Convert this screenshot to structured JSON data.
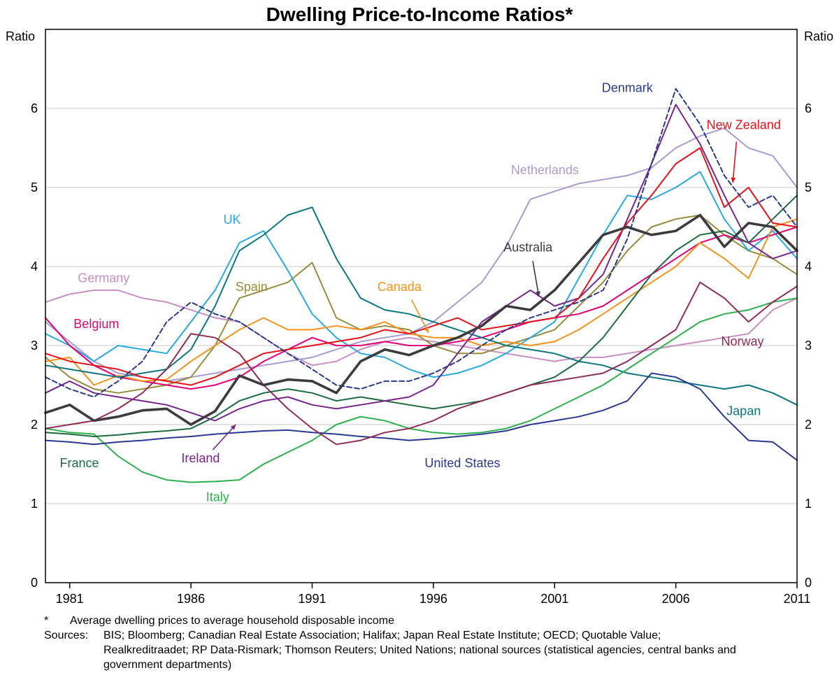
{
  "header": {
    "title": "Dwelling Price-to-Income Ratios*"
  },
  "footnote": {
    "marker": "*",
    "text": "Average dwelling prices to average household disposable income",
    "sources_label": "Sources:",
    "sources_text": "BIS; Bloomberg; Canadian Real Estate Association; Halifax; Japan Real Estate Institute; OECD; Quotable Value; Realkreditraadet; RP Data-Rismark; Thomson Reuters; United Nations; national sources (statistical agencies, central banks and government departments)"
  },
  "chart_data": {
    "type": "line",
    "title": "Dwelling Price-to-Income Ratios*",
    "ylabel": "Ratio",
    "ylabel_right": "Ratio",
    "xlim": [
      1980,
      2011
    ],
    "ylim": [
      0,
      7
    ],
    "yticks": [
      0,
      1,
      2,
      3,
      4,
      5,
      6
    ],
    "xticks": [
      1981,
      1986,
      1991,
      1996,
      2001,
      2006,
      2011
    ],
    "grid_on": true,
    "grid_color": "#c8c8c8",
    "x": [
      1980,
      1981,
      1982,
      1983,
      1984,
      1985,
      1986,
      1987,
      1988,
      1989,
      1990,
      1991,
      1992,
      1993,
      1994,
      1995,
      1996,
      1997,
      1998,
      1999,
      2000,
      2001,
      2002,
      2003,
      2004,
      2005,
      2006,
      2007,
      2008,
      2009,
      2010,
      2011
    ],
    "series": [
      {
        "id": "germany",
        "name": "Germany",
        "color": "#c98ec2",
        "width": 2,
        "values": [
          3.55,
          3.65,
          3.7,
          3.7,
          3.6,
          3.55,
          3.45,
          3.35,
          3.3,
          3.1,
          2.9,
          2.75,
          2.8,
          2.95,
          3.05,
          3.1,
          3.05,
          3.0,
          2.95,
          2.9,
          2.85,
          2.8,
          2.85,
          2.85,
          2.9,
          2.95,
          3.0,
          3.05,
          3.1,
          3.15,
          3.45,
          3.6
        ]
      },
      {
        "id": "netherlands",
        "name": "Netherlands",
        "color": "#a89cce",
        "width": 2,
        "values": [
          3.3,
          3.05,
          2.8,
          2.65,
          2.6,
          2.55,
          2.6,
          2.65,
          2.7,
          2.75,
          2.8,
          2.85,
          2.95,
          3.05,
          3.1,
          3.15,
          3.3,
          3.55,
          3.8,
          4.25,
          4.85,
          4.95,
          5.05,
          5.1,
          5.15,
          5.25,
          5.5,
          5.65,
          5.75,
          5.5,
          5.4,
          5.0
        ]
      },
      {
        "id": "spain",
        "name": "Spain",
        "color": "#968c3e",
        "width": 2,
        "values": [
          2.85,
          2.6,
          2.45,
          2.4,
          2.45,
          2.5,
          2.6,
          3.0,
          3.6,
          3.7,
          3.8,
          4.05,
          3.35,
          3.2,
          3.25,
          3.2,
          3.0,
          2.9,
          2.9,
          3.0,
          3.1,
          3.2,
          3.5,
          3.8,
          4.2,
          4.5,
          4.6,
          4.65,
          4.4,
          4.2,
          4.1,
          3.9
        ]
      },
      {
        "id": "uk",
        "name": "UK",
        "color": "#27aae1",
        "width": 2,
        "values": [
          3.15,
          3.0,
          2.8,
          3.0,
          2.95,
          2.9,
          3.3,
          3.7,
          4.3,
          4.45,
          3.95,
          3.4,
          3.1,
          2.9,
          2.85,
          2.7,
          2.6,
          2.65,
          2.75,
          2.9,
          3.1,
          3.3,
          3.85,
          4.4,
          4.9,
          4.85,
          5.0,
          5.2,
          4.6,
          4.2,
          4.45,
          4.1
        ]
      },
      {
        "id": "belgium",
        "name": "Belgium",
        "color": "#e20177",
        "width": 2,
        "values": [
          3.35,
          3.0,
          2.75,
          2.6,
          2.55,
          2.5,
          2.45,
          2.5,
          2.6,
          2.8,
          2.95,
          3.1,
          3.0,
          3.0,
          3.05,
          3.0,
          3.0,
          3.05,
          3.1,
          3.2,
          3.3,
          3.35,
          3.4,
          3.5,
          3.7,
          3.9,
          4.1,
          4.3,
          4.4,
          4.3,
          4.4,
          4.5
        ]
      },
      {
        "id": "canada",
        "name": "Canada",
        "color": "#f5921e",
        "width": 2,
        "values": [
          2.8,
          2.85,
          2.5,
          2.62,
          2.55,
          2.57,
          2.8,
          3.0,
          3.2,
          3.35,
          3.2,
          3.2,
          3.25,
          3.2,
          3.3,
          3.15,
          3.1,
          3.1,
          3.0,
          3.05,
          3.0,
          3.05,
          3.2,
          3.4,
          3.6,
          3.8,
          4.0,
          4.3,
          4.1,
          3.85,
          4.5,
          4.6
        ]
      },
      {
        "id": "japan",
        "name": "Japan",
        "color": "#0d7680",
        "width": 2,
        "values": [
          2.75,
          2.7,
          2.65,
          2.6,
          2.65,
          2.7,
          2.95,
          3.5,
          4.2,
          4.4,
          4.65,
          4.75,
          4.1,
          3.6,
          3.45,
          3.4,
          3.3,
          3.2,
          3.1,
          3.0,
          2.95,
          2.9,
          2.8,
          2.75,
          2.65,
          2.6,
          2.55,
          2.5,
          2.45,
          2.5,
          2.4,
          2.25
        ]
      },
      {
        "id": "italy",
        "name": "Italy",
        "color": "#2eb04c",
        "width": 2,
        "values": [
          1.95,
          1.9,
          1.88,
          1.6,
          1.4,
          1.3,
          1.27,
          1.28,
          1.3,
          1.5,
          1.65,
          1.8,
          2.0,
          2.1,
          2.05,
          1.95,
          1.9,
          1.88,
          1.9,
          1.95,
          2.05,
          2.2,
          2.35,
          2.5,
          2.7,
          2.9,
          3.1,
          3.3,
          3.4,
          3.45,
          3.55,
          3.6
        ]
      },
      {
        "id": "france",
        "name": "France",
        "color": "#1d6b40",
        "width": 2,
        "values": [
          1.9,
          1.88,
          1.85,
          1.87,
          1.9,
          1.92,
          1.95,
          2.1,
          2.3,
          2.4,
          2.45,
          2.4,
          2.3,
          2.35,
          2.3,
          2.25,
          2.2,
          2.25,
          2.3,
          2.4,
          2.5,
          2.6,
          2.8,
          3.1,
          3.5,
          3.9,
          4.2,
          4.4,
          4.45,
          4.3,
          4.6,
          4.9
        ]
      },
      {
        "id": "united-states",
        "name": "United States",
        "color": "#2b3990",
        "width": 2,
        "values": [
          1.8,
          1.78,
          1.75,
          1.78,
          1.8,
          1.83,
          1.85,
          1.88,
          1.9,
          1.92,
          1.93,
          1.9,
          1.88,
          1.85,
          1.83,
          1.8,
          1.82,
          1.85,
          1.88,
          1.92,
          2.0,
          2.05,
          2.1,
          2.18,
          2.3,
          2.65,
          2.6,
          2.45,
          2.1,
          1.8,
          1.78,
          1.55
        ]
      },
      {
        "id": "norway",
        "name": "Norway",
        "color": "#8f2d56",
        "width": 2,
        "values": [
          1.95,
          2.0,
          2.05,
          2.2,
          2.4,
          2.7,
          3.15,
          3.1,
          2.9,
          2.5,
          2.2,
          1.95,
          1.75,
          1.8,
          1.9,
          1.95,
          2.05,
          2.2,
          2.3,
          2.4,
          2.5,
          2.55,
          2.6,
          2.65,
          2.8,
          3.0,
          3.2,
          3.8,
          3.6,
          3.3,
          3.55,
          3.75
        ]
      },
      {
        "id": "ireland",
        "name": "Ireland",
        "color": "#76268c",
        "width": 2,
        "values": [
          2.4,
          2.55,
          2.4,
          2.35,
          2.3,
          2.25,
          2.15,
          2.05,
          2.2,
          2.3,
          2.35,
          2.25,
          2.2,
          2.25,
          2.3,
          2.35,
          2.5,
          2.9,
          3.3,
          3.5,
          3.7,
          3.5,
          3.6,
          3.9,
          4.6,
          5.3,
          6.05,
          5.55,
          4.9,
          4.3,
          4.1,
          4.2
        ]
      },
      {
        "id": "new-zealand",
        "name": "New Zealand",
        "color": "#e4131b",
        "width": 2,
        "values": [
          2.9,
          2.8,
          2.75,
          2.7,
          2.6,
          2.55,
          2.5,
          2.6,
          2.75,
          2.9,
          2.95,
          3.0,
          3.05,
          3.1,
          3.2,
          3.15,
          3.25,
          3.35,
          3.2,
          3.25,
          3.3,
          3.35,
          3.6,
          4.1,
          4.55,
          4.9,
          5.3,
          5.5,
          4.75,
          5.0,
          4.55,
          4.5
        ]
      },
      {
        "id": "denmark",
        "name": "Denmark",
        "color": "#2b3a8f",
        "width": 2,
        "dash": "7,4",
        "values": [
          2.6,
          2.45,
          2.35,
          2.55,
          2.8,
          3.3,
          3.55,
          3.4,
          3.3,
          3.1,
          2.9,
          2.7,
          2.5,
          2.45,
          2.55,
          2.55,
          2.65,
          2.8,
          3.0,
          3.2,
          3.35,
          3.45,
          3.55,
          3.7,
          4.35,
          5.3,
          6.25,
          5.8,
          5.15,
          4.75,
          4.9,
          4.5
        ]
      },
      {
        "id": "australia",
        "name": "Australia",
        "color": "#3c3c3e",
        "width": 3.6,
        "values": [
          2.15,
          2.25,
          2.05,
          2.1,
          2.18,
          2.2,
          2.0,
          2.17,
          2.62,
          2.5,
          2.57,
          2.55,
          2.4,
          2.8,
          2.95,
          2.88,
          3.0,
          3.1,
          3.25,
          3.5,
          3.45,
          3.7,
          4.05,
          4.4,
          4.5,
          4.4,
          4.45,
          4.65,
          4.25,
          4.55,
          4.5,
          4.2
        ]
      }
    ],
    "annotations": [
      {
        "id": "germany",
        "label": "Germany",
        "x": 1982.4,
        "y": 3.8,
        "color": "#c98ec2"
      },
      {
        "id": "belgium",
        "label": "Belgium",
        "x": 1982.1,
        "y": 3.22,
        "color": "#e20177"
      },
      {
        "id": "uk",
        "label": "UK",
        "x": 1987.7,
        "y": 4.54,
        "color": "#27aae1"
      },
      {
        "id": "spain",
        "label": "Spain",
        "x": 1988.5,
        "y": 3.69,
        "color": "#968c3e"
      },
      {
        "id": "canada",
        "label": "Canada",
        "x": 1994.6,
        "y": 3.69,
        "color": "#f5921e",
        "arrow": [
          1995.1,
          3.58,
          1995.8,
          3.16
        ]
      },
      {
        "id": "netherlands",
        "label": "Netherlands",
        "x": 2000.6,
        "y": 5.17,
        "color": "#a89cce"
      },
      {
        "id": "denmark",
        "label": "Denmark",
        "x": 2004.0,
        "y": 6.21,
        "color": "#2b3a8f"
      },
      {
        "id": "new-zealand",
        "label": "New Zealand",
        "x": 2008.8,
        "y": 5.74,
        "color": "#e4131b",
        "arrow": [
          2008.5,
          5.58,
          2008.35,
          5.06
        ]
      },
      {
        "id": "australia",
        "label": "Australia",
        "x": 1999.9,
        "y": 4.19,
        "color": "#3c3c3e",
        "arrow": [
          2000.1,
          4.07,
          2000.35,
          3.62
        ]
      },
      {
        "id": "norway",
        "label": "Norway",
        "x": 2008.75,
        "y": 3.0,
        "color": "#8f2d56"
      },
      {
        "id": "ireland",
        "label": "Ireland",
        "x": 1986.4,
        "y": 1.52,
        "color": "#76268c",
        "arrow": [
          1986.9,
          1.68,
          1987.85,
          2.0
        ]
      },
      {
        "id": "japan",
        "label": "Japan",
        "x": 2008.8,
        "y": 2.12,
        "color": "#0d7680"
      },
      {
        "id": "france",
        "label": "France",
        "x": 1981.4,
        "y": 1.46,
        "color": "#1d6b40"
      },
      {
        "id": "italy",
        "label": "Italy",
        "x": 1987.1,
        "y": 1.03,
        "color": "#2eb04c"
      },
      {
        "id": "united-states",
        "label": "United States",
        "x": 1997.2,
        "y": 1.46,
        "color": "#2b3990"
      }
    ]
  }
}
